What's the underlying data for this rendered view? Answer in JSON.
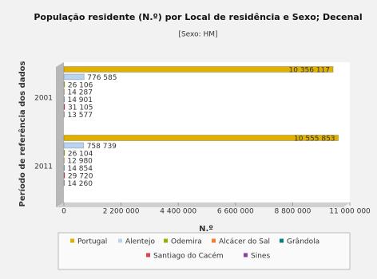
{
  "chart_data": {
    "type": "bar",
    "orientation": "horizontal",
    "title": "População residente (N.º) por Local de residência e Sexo; Decenal",
    "subtitle": "[Sexo: HM]",
    "x_label": "N.º",
    "y_label": "Período de referência dos dados",
    "categories": [
      "2001",
      "2011"
    ],
    "series": [
      {
        "name": "Portugal",
        "color": "#e0b000",
        "values": [
          10356117,
          10555853
        ],
        "value_labels": [
          "10 356 117",
          "10 555 853"
        ]
      },
      {
        "name": "Alentejo",
        "color": "#b8d4ee",
        "values": [
          776585,
          758739
        ],
        "value_labels": [
          "776 585",
          "758 739"
        ]
      },
      {
        "name": "Odemira",
        "color": "#8db600",
        "values": [
          26106,
          26104
        ],
        "value_labels": [
          "26 106",
          "26 104"
        ]
      },
      {
        "name": "Alcácer do Sal",
        "color": "#f08030",
        "values": [
          14287,
          12980
        ],
        "value_labels": [
          "14 287",
          "12 980"
        ]
      },
      {
        "name": "Grândola",
        "color": "#008080",
        "values": [
          14901,
          14854
        ],
        "value_labels": [
          "14 901",
          "14 854"
        ]
      },
      {
        "name": "Santiago do Cacém",
        "color": "#e04050",
        "values": [
          31105,
          29720
        ],
        "value_labels": [
          "31 105",
          "29 720"
        ]
      },
      {
        "name": "Sines",
        "color": "#9040a0",
        "values": [
          13577,
          14260
        ],
        "value_labels": [
          "13 577",
          "14 260"
        ]
      }
    ],
    "xlim": [
      0,
      11000000
    ],
    "xticks": [
      0,
      {
        "value": 2200000,
        "label": "2 200 000"
      },
      {
        "value": 4400000,
        "label": "4 400 000"
      },
      {
        "value": 6600000,
        "label": "6 600 000"
      },
      {
        "value": 8800000,
        "label": "8 800 000"
      },
      {
        "value": 11000000,
        "label": "11 000 000"
      }
    ],
    "legend": "bottom"
  }
}
